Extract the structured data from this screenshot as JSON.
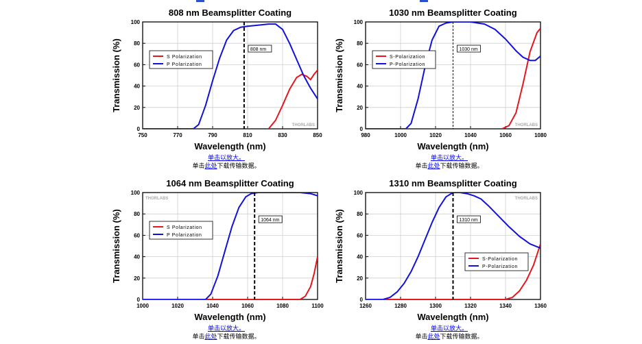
{
  "colors": {
    "s_pol": "#e8141b",
    "p_pol": "#1010dd",
    "marker": "#000000",
    "link": "#0000ee",
    "grid": "#cfcfcf"
  },
  "watermark": "THORLABS",
  "panels": [
    {
      "caption": {
        "zoom_link": "单击以放大。",
        "download_prefix": "单击",
        "download_link": "此处",
        "download_suffix": "下载传输数据。"
      },
      "chart_data": {
        "type": "line",
        "title": "808 nm Beamsplitter Coating",
        "xlabel": "Wavelength (nm)",
        "ylabel": "Transmission (%)",
        "xlim": [
          750,
          850
        ],
        "ylim": [
          0,
          100
        ],
        "xticks": [
          750,
          770,
          790,
          810,
          830,
          850
        ],
        "yticks": [
          0,
          20,
          40,
          60,
          80,
          100
        ],
        "marker_x": 808,
        "marker_label": "808 nm",
        "legend": [
          "S Polarization",
          "P Polarization"
        ],
        "legend_position": "left-middle",
        "series": [
          {
            "name": "S Polarization",
            "x": [
              750,
              780,
              800,
              815,
              822,
              826,
              830,
              834,
              838,
              841,
              844,
              846,
              848,
              850
            ],
            "y": [
              0,
              0,
              0,
              0,
              0,
              8,
              22,
              37,
              48,
              51,
              49,
              46,
              51,
              55
            ]
          },
          {
            "name": "P Polarization",
            "x": [
              750,
              779,
              782,
              786,
              790,
              794,
              798,
              802,
              806,
              810,
              816,
              822,
              826,
              830,
              834,
              838,
              842,
              846,
              850
            ],
            "y": [
              0,
              0,
              4,
              22,
              45,
              66,
              83,
              92,
              95,
              96,
              97,
              98,
              98,
              93,
              80,
              65,
              50,
              38,
              28
            ]
          }
        ]
      }
    },
    {
      "caption": {
        "zoom_link": "单击以放大。",
        "download_prefix": "单击",
        "download_link": "此处",
        "download_suffix": "下载传输数据。"
      },
      "chart_data": {
        "type": "line",
        "title": "1030 nm Beamsplitter Coating",
        "xlabel": "Wavelength (nm)",
        "ylabel": "Transmission (%)",
        "xlim": [
          980,
          1080
        ],
        "ylim": [
          0,
          100
        ],
        "xticks": [
          980,
          1000,
          1020,
          1040,
          1060,
          1080
        ],
        "yticks": [
          0,
          20,
          40,
          60,
          80,
          100
        ],
        "marker_x": 1030,
        "marker_label": "1030 nm",
        "legend": [
          "S-Polarization",
          "P-Polarization"
        ],
        "legend_position": "left-middle",
        "series": [
          {
            "name": "S-Polarization",
            "x": [
              980,
              1020,
              1040,
              1058,
              1062,
              1066,
              1070,
              1074,
              1078,
              1080
            ],
            "y": [
              0,
              0,
              0,
              0,
              3,
              15,
              42,
              72,
              90,
              94
            ]
          },
          {
            "name": "P-Polarization",
            "x": [
              980,
              1003,
              1006,
              1010,
              1014,
              1018,
              1022,
              1026,
              1030,
              1040,
              1048,
              1054,
              1060,
              1066,
              1070,
              1074,
              1077,
              1080
            ],
            "y": [
              0,
              0,
              5,
              28,
              58,
              83,
              96,
              99,
              100,
              100,
              98,
              93,
              84,
              73,
              67,
              64,
              64,
              68
            ]
          }
        ]
      }
    },
    {
      "caption": {
        "zoom_link": "单击以放大。",
        "download_prefix": "单击",
        "download_link": "此处",
        "download_suffix": "下载传输数据。"
      },
      "chart_data": {
        "type": "line",
        "title": "1064 nm Beamsplitter Coating",
        "xlabel": "Wavelength (nm)",
        "ylabel": "Transmission (%)",
        "xlim": [
          1000,
          1100
        ],
        "ylim": [
          0,
          100
        ],
        "xticks": [
          1000,
          1020,
          1040,
          1060,
          1080,
          1100
        ],
        "yticks": [
          0,
          20,
          40,
          60,
          80,
          100
        ],
        "marker_x": 1064,
        "marker_label": "1064 nm",
        "legend": [
          "S Polarization",
          "P Polarization"
        ],
        "legend_position": "left-middle",
        "series": [
          {
            "name": "S Polarization",
            "x": [
              1000,
              1050,
              1090,
              1093,
              1096,
              1098,
              1100
            ],
            "y": [
              0,
              0,
              0,
              3,
              12,
              24,
              40
            ]
          },
          {
            "name": "P Polarization",
            "x": [
              1000,
              1036,
              1039,
              1043,
              1047,
              1051,
              1055,
              1059,
              1062,
              1066,
              1080,
              1090,
              1096,
              1100
            ],
            "y": [
              0,
              0,
              5,
              22,
              45,
              68,
              86,
              96,
              99,
              100,
              100,
              100,
              99,
              97
            ]
          }
        ]
      }
    },
    {
      "caption": {
        "zoom_link": "单击以放大。",
        "download_prefix": "单击",
        "download_link": "此处",
        "download_suffix": "下载传输数据。"
      },
      "chart_data": {
        "type": "line",
        "title": "1310 nm Beamsplitter Coating",
        "xlabel": "Wavelength (nm)",
        "ylabel": "Transmission (%)",
        "xlim": [
          1260,
          1360
        ],
        "ylim": [
          0,
          100
        ],
        "xticks": [
          1260,
          1280,
          1300,
          1320,
          1340,
          1360
        ],
        "yticks": [
          0,
          20,
          40,
          60,
          80,
          100
        ],
        "marker_x": 1310,
        "marker_label": "1310 nm",
        "legend": [
          "S-Polarization",
          "P-Polarization"
        ],
        "legend_position": "bottom-right",
        "series": [
          {
            "name": "S-Polarization",
            "x": [
              1260,
              1300,
              1340,
              1344,
              1348,
              1352,
              1356,
              1360
            ],
            "y": [
              0,
              0,
              0,
              2,
              8,
              18,
              32,
              52
            ]
          },
          {
            "name": "P-Polarization",
            "x": [
              1260,
              1270,
              1274,
              1278,
              1282,
              1286,
              1290,
              1294,
              1298,
              1302,
              1306,
              1310,
              1314,
              1318,
              1322,
              1326,
              1330,
              1336,
              1342,
              1348,
              1354,
              1360
            ],
            "y": [
              0,
              0,
              2,
              7,
              15,
              26,
              40,
              56,
              72,
              86,
              96,
              100,
              100,
              99,
              97,
              94,
              88,
              78,
              68,
              59,
              52,
              48
            ]
          }
        ]
      }
    }
  ]
}
